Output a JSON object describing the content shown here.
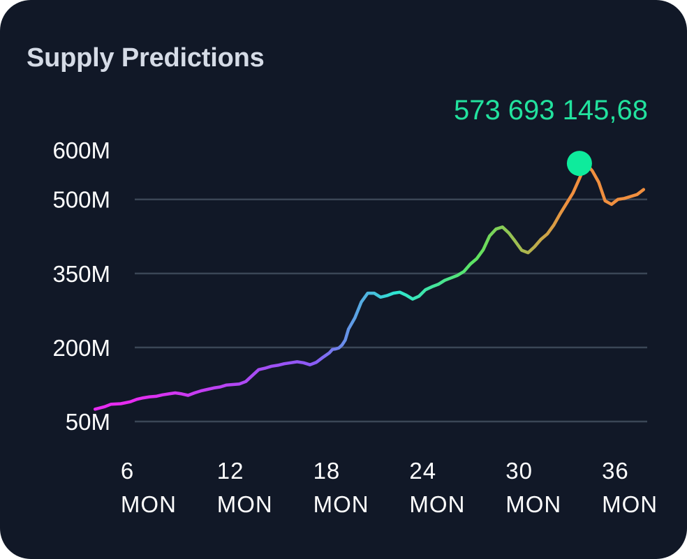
{
  "card": {
    "title": "Supply Predictions",
    "background": "#111827"
  },
  "chart_data": {
    "type": "line",
    "title": "Supply Predictions",
    "x_unit": "MON",
    "xlim": [
      3,
      39
    ],
    "ylim": [
      50,
      600
    ],
    "y_ticks": [
      {
        "label": "600M",
        "value": 600,
        "grid": false
      },
      {
        "label": "500M",
        "value": 500,
        "grid": true
      },
      {
        "label": "350M",
        "value": 350,
        "grid": true
      },
      {
        "label": "200M",
        "value": 200,
        "grid": true
      },
      {
        "label": "50M",
        "value": 50,
        "grid": true
      }
    ],
    "x_ticks": [
      {
        "value": 6,
        "num": "6",
        "unit": "MON"
      },
      {
        "value": 12,
        "num": "12",
        "unit": "MON"
      },
      {
        "value": 18,
        "num": "18",
        "unit": "MON"
      },
      {
        "value": 24,
        "num": "24",
        "unit": "MON"
      },
      {
        "value": 30,
        "num": "30",
        "unit": "MON"
      },
      {
        "value": 36,
        "num": "36",
        "unit": "MON"
      }
    ],
    "series": [
      {
        "x": [
          4.4,
          5,
          5.4,
          6,
          6.6,
          7,
          7.4,
          7.8,
          8.2,
          8.6,
          9,
          9.4,
          9.8,
          10.2,
          10.6,
          11,
          11.4,
          11.8,
          12.2,
          12.6,
          13,
          13.4,
          13.8,
          14.2,
          14.6,
          15,
          15.4,
          15.8,
          16.2,
          16.6,
          17,
          17.4,
          17.8,
          18.2,
          18.6,
          19,
          19.2,
          19.4,
          19.6,
          19.8,
          20,
          20.2,
          20.6,
          21,
          21.4,
          21.8,
          22.2,
          22.6,
          23,
          23.4,
          23.8,
          24.2,
          24.6,
          25,
          25.4,
          25.8,
          26.2,
          26.6,
          27,
          27.4,
          27.8,
          28.2,
          28.6,
          29,
          29.4,
          29.8,
          30.2,
          30.6,
          31,
          31.4,
          31.8,
          32.2,
          32.6,
          33,
          33.4,
          33.8,
          34.2,
          34.6,
          35,
          35.4,
          35.8,
          36.2,
          36.6,
          37,
          37.4,
          37.8,
          38.2,
          38.6
        ],
        "y": [
          75,
          80,
          85,
          86,
          90,
          95,
          98,
          100,
          101,
          104,
          106,
          108,
          106,
          103,
          108,
          112,
          115,
          118,
          120,
          124,
          125,
          126,
          131,
          143,
          155,
          158,
          162,
          164,
          167,
          169,
          171,
          169,
          165,
          170,
          180,
          189,
          196,
          197,
          199,
          205,
          215,
          237,
          260,
          292,
          310,
          310,
          302,
          305,
          310,
          312,
          306,
          298,
          304,
          317,
          323,
          328,
          336,
          341,
          346,
          354,
          369,
          380,
          398,
          426,
          440,
          444,
          432,
          415,
          397,
          392,
          404,
          419,
          430,
          448,
          471,
          492,
          513,
          542,
          573,
          558,
          535,
          497,
          490,
          500,
          502,
          506,
          510,
          520
        ],
        "color_stops": [
          "#e62cf0",
          "#8a5cf6",
          "#2de6d2",
          "#5fe35f",
          "#f08f3f"
        ]
      }
    ],
    "highlight": {
      "x": 34.6,
      "y": 573,
      "label": "573 693 145,68",
      "color": "#0eeb9c"
    },
    "grid": true
  }
}
